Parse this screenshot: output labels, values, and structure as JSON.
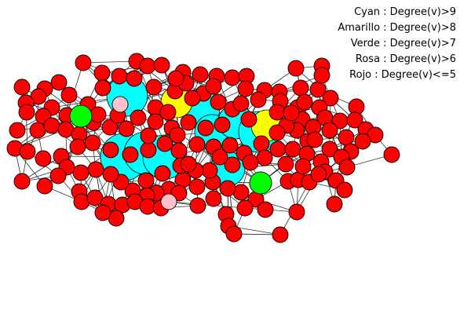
{
  "legend": {
    "items": [
      {
        "label": "Cyan : Degree(v)>9",
        "color": "#00ffff"
      },
      {
        "label": "Amarillo : Degree(v)>8",
        "color": "#ffff00"
      },
      {
        "label": "Verde : Degree(v)>7",
        "color": "#00ff00"
      },
      {
        "label": "Rosa : Degree(v)>6",
        "color": "#ffc0cb"
      },
      {
        "label": "Rojo : Degree(v)<=5",
        "color": "#ff0000"
      }
    ]
  },
  "colors": {
    "cyan": "#00ffff",
    "yellow": "#ffff00",
    "green": "#00ff00",
    "pink": "#ffc0cb",
    "red": "#ff0000",
    "edge": "#333333",
    "outline": "#000000"
  }
}
